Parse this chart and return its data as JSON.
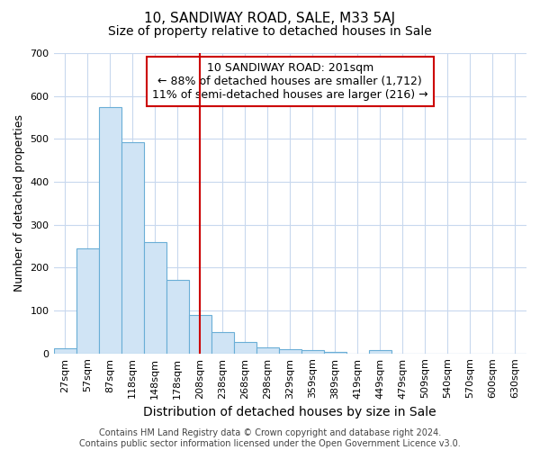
{
  "title": "10, SANDIWAY ROAD, SALE, M33 5AJ",
  "subtitle": "Size of property relative to detached houses in Sale",
  "xlabel": "Distribution of detached houses by size in Sale",
  "ylabel": "Number of detached properties",
  "categories": [
    "27sqm",
    "57sqm",
    "87sqm",
    "118sqm",
    "148sqm",
    "178sqm",
    "208sqm",
    "238sqm",
    "268sqm",
    "298sqm",
    "329sqm",
    "359sqm",
    "389sqm",
    "419sqm",
    "449sqm",
    "479sqm",
    "509sqm",
    "540sqm",
    "570sqm",
    "600sqm",
    "630sqm"
  ],
  "values": [
    12,
    245,
    575,
    493,
    260,
    172,
    90,
    50,
    27,
    13,
    10,
    7,
    4,
    0,
    7,
    0,
    0,
    0,
    0,
    0,
    0
  ],
  "bar_color": "#d0e4f5",
  "bar_edge_color": "#6aaed6",
  "red_line_index": 6,
  "red_line_color": "#cc0000",
  "annotation_text": "10 SANDIWAY ROAD: 201sqm\n← 88% of detached houses are smaller (1,712)\n11% of semi-detached houses are larger (216) →",
  "annotation_box_color": "#ffffff",
  "annotation_box_edge": "#cc0000",
  "ylim": [
    0,
    700
  ],
  "yticks": [
    0,
    100,
    200,
    300,
    400,
    500,
    600,
    700
  ],
  "fig_bg_color": "#ffffff",
  "axes_bg_color": "#ffffff",
  "grid_color": "#c8d8ee",
  "footer_text": "Contains HM Land Registry data © Crown copyright and database right 2024.\nContains public sector information licensed under the Open Government Licence v3.0.",
  "title_fontsize": 11,
  "subtitle_fontsize": 10,
  "xlabel_fontsize": 10,
  "ylabel_fontsize": 9,
  "tick_fontsize": 8,
  "annotation_fontsize": 9,
  "footer_fontsize": 7
}
